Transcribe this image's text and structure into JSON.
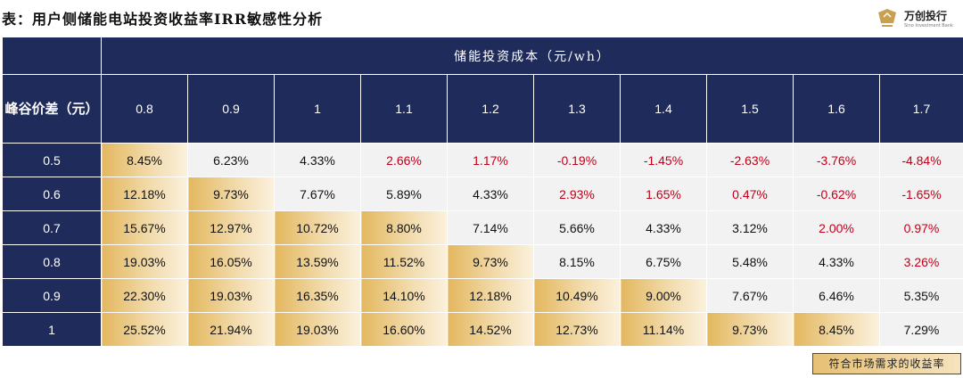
{
  "title": "表：用户侧储能电站投资收益率IRR敏感性分析",
  "logo": {
    "name_cn": "万创投行",
    "name_en": "Sino Investment Bank",
    "icon": "crown-icon"
  },
  "table": {
    "cost_header": "储能投资成本（元/wh）",
    "diff_header": "峰谷价差（元）",
    "costs": [
      "0.8",
      "0.9",
      "1",
      "1.1",
      "1.2",
      "1.3",
      "1.4",
      "1.5",
      "1.6",
      "1.7"
    ],
    "rows": [
      {
        "diff": "0.5",
        "values": [
          "8.45%",
          "6.23%",
          "4.33%",
          "2.66%",
          "1.17%",
          "-0.19%",
          "-1.45%",
          "-2.63%",
          "-3.76%",
          "-4.84%"
        ]
      },
      {
        "diff": "0.6",
        "values": [
          "12.18%",
          "9.73%",
          "7.67%",
          "5.89%",
          "4.33%",
          "2.93%",
          "1.65%",
          "0.47%",
          "-0.62%",
          "-1.65%"
        ]
      },
      {
        "diff": "0.7",
        "values": [
          "15.67%",
          "12.97%",
          "10.72%",
          "8.80%",
          "7.14%",
          "5.66%",
          "4.33%",
          "3.12%",
          "2.00%",
          "0.97%"
        ]
      },
      {
        "diff": "0.8",
        "values": [
          "19.03%",
          "16.05%",
          "13.59%",
          "11.52%",
          "9.73%",
          "8.15%",
          "6.75%",
          "5.48%",
          "4.33%",
          "3.26%"
        ]
      },
      {
        "diff": "0.9",
        "values": [
          "22.30%",
          "19.03%",
          "16.35%",
          "14.10%",
          "12.18%",
          "10.49%",
          "9.00%",
          "7.67%",
          "6.46%",
          "5.35%"
        ]
      },
      {
        "diff": "1",
        "values": [
          "25.52%",
          "21.94%",
          "19.03%",
          "16.60%",
          "14.52%",
          "12.73%",
          "11.14%",
          "9.73%",
          "8.45%",
          "7.29%"
        ]
      }
    ],
    "highlighted_count_per_row": [
      1,
      2,
      4,
      5,
      7,
      9
    ],
    "colors": {
      "header_bg": "#1f2c5b",
      "cell_bg": "#f2f2f2",
      "negative_text": "#c0001a",
      "highlight_gold": "#e3b85f"
    }
  },
  "legend": {
    "label": "符合市场需求的收益率"
  }
}
